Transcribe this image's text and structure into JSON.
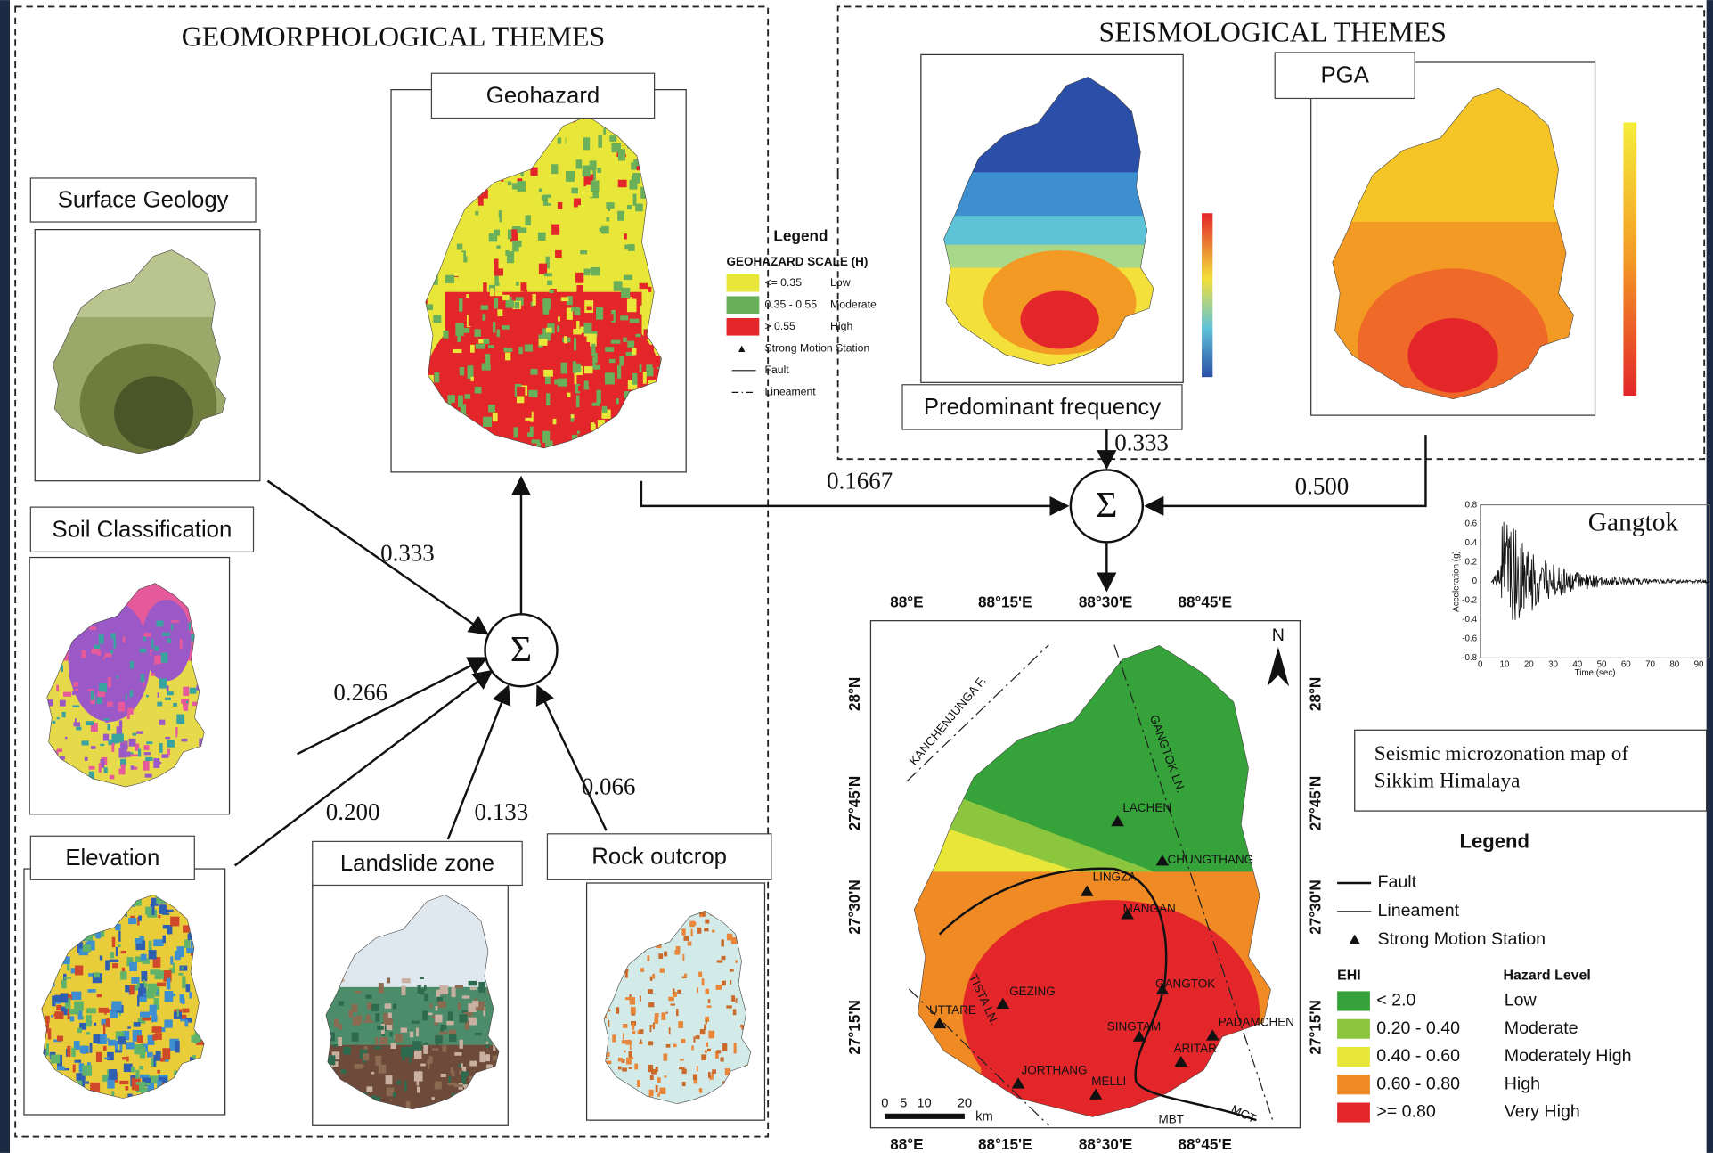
{
  "geomorphological_themes": {
    "title": "GEOMORPHOLOGICAL THEMES",
    "output": "Geohazard",
    "inputs": [
      {
        "label": "Surface Geology",
        "weight": "0.333"
      },
      {
        "label": "Soil Classification",
        "weight": "0.266"
      },
      {
        "label": "Elevation",
        "weight": "0.200"
      },
      {
        "label": "Landslide zone",
        "weight": "0.133"
      },
      {
        "label": "Rock outcrop",
        "weight": "0.066"
      }
    ]
  },
  "seismological_themes": {
    "title": "SEISMOLOGICAL THEMES",
    "inputs": [
      {
        "label": "Predominant frequency",
        "weight": "0.333"
      },
      {
        "label": "PGA",
        "weight": "0.500"
      }
    ]
  },
  "geohazard_weight": "0.1667",
  "sum_symbol": "Σ",
  "geohazard_legend": {
    "title": "Legend",
    "scale_title": "GEOHAZARD SCALE (H)",
    "items": [
      {
        "range": "<= 0.35",
        "level": "Low",
        "color": "#e9e63a"
      },
      {
        "range": "0.35 - 0.55",
        "level": "Moderate",
        "color": "#6aaf5a"
      },
      {
        "range": "> 0.55",
        "level": "High",
        "color": "#e3262a"
      }
    ],
    "symbols": [
      "Strong Motion Station",
      "Fault",
      "Lineament"
    ]
  },
  "accelerogram": {
    "station": "Gangtok",
    "y_label": "Acceleration (g)",
    "x_label": "Time (sec)",
    "yticks": [
      "0.8",
      "0.6",
      "0.4",
      "0.2",
      "0",
      "-0.2",
      "-0.4",
      "-0.6",
      "-0.8"
    ],
    "xticks": [
      "0",
      "10",
      "20",
      "30",
      "40",
      "50",
      "60",
      "70",
      "80",
      "90"
    ]
  },
  "result_map": {
    "title_lines": [
      "Seismic microzonation map of",
      "Sikkim Himalaya"
    ],
    "north": "N",
    "lon_labels": [
      "88°E",
      "88°15'E",
      "88°30'E",
      "88°45'E"
    ],
    "lat_labels": [
      "28°N",
      "27°45'N",
      "27°30'N",
      "27°15'N"
    ],
    "places": [
      "LACHEN",
      "CHUNGTHANG",
      "LINGZA",
      "MANGAN",
      "GANGTOK",
      "GEZING",
      "UTTARE",
      "SINGTAM",
      "PADAMCHEN",
      "ARITAR",
      "JORTHANG",
      "MELLI"
    ],
    "features": [
      "KANCHENJUNGA F.",
      "GANGTOK LN.",
      "TISTA LN.",
      "MBT",
      "MCT"
    ],
    "scale": [
      "0",
      "5",
      "10",
      "20",
      "km"
    ],
    "legend": {
      "title": "Legend",
      "symbols": [
        "Fault",
        "Lineament",
        "Strong Motion Station"
      ],
      "ehi_header": "EHI",
      "level_header": "Hazard Level",
      "rows": [
        {
          "ehi": "< 2.0",
          "level": "Low",
          "color": "#35a33a"
        },
        {
          "ehi": "0.20 - 0.40",
          "level": "Moderate",
          "color": "#8cc63f"
        },
        {
          "ehi": "0.40 - 0.60",
          "level": "Moderately High",
          "color": "#e9e63a"
        },
        {
          "ehi": "0.60 - 0.80",
          "level": "High",
          "color": "#f08a24"
        },
        {
          "ehi": ">= 0.80",
          "level": "Very High",
          "color": "#e3262a"
        }
      ]
    }
  }
}
